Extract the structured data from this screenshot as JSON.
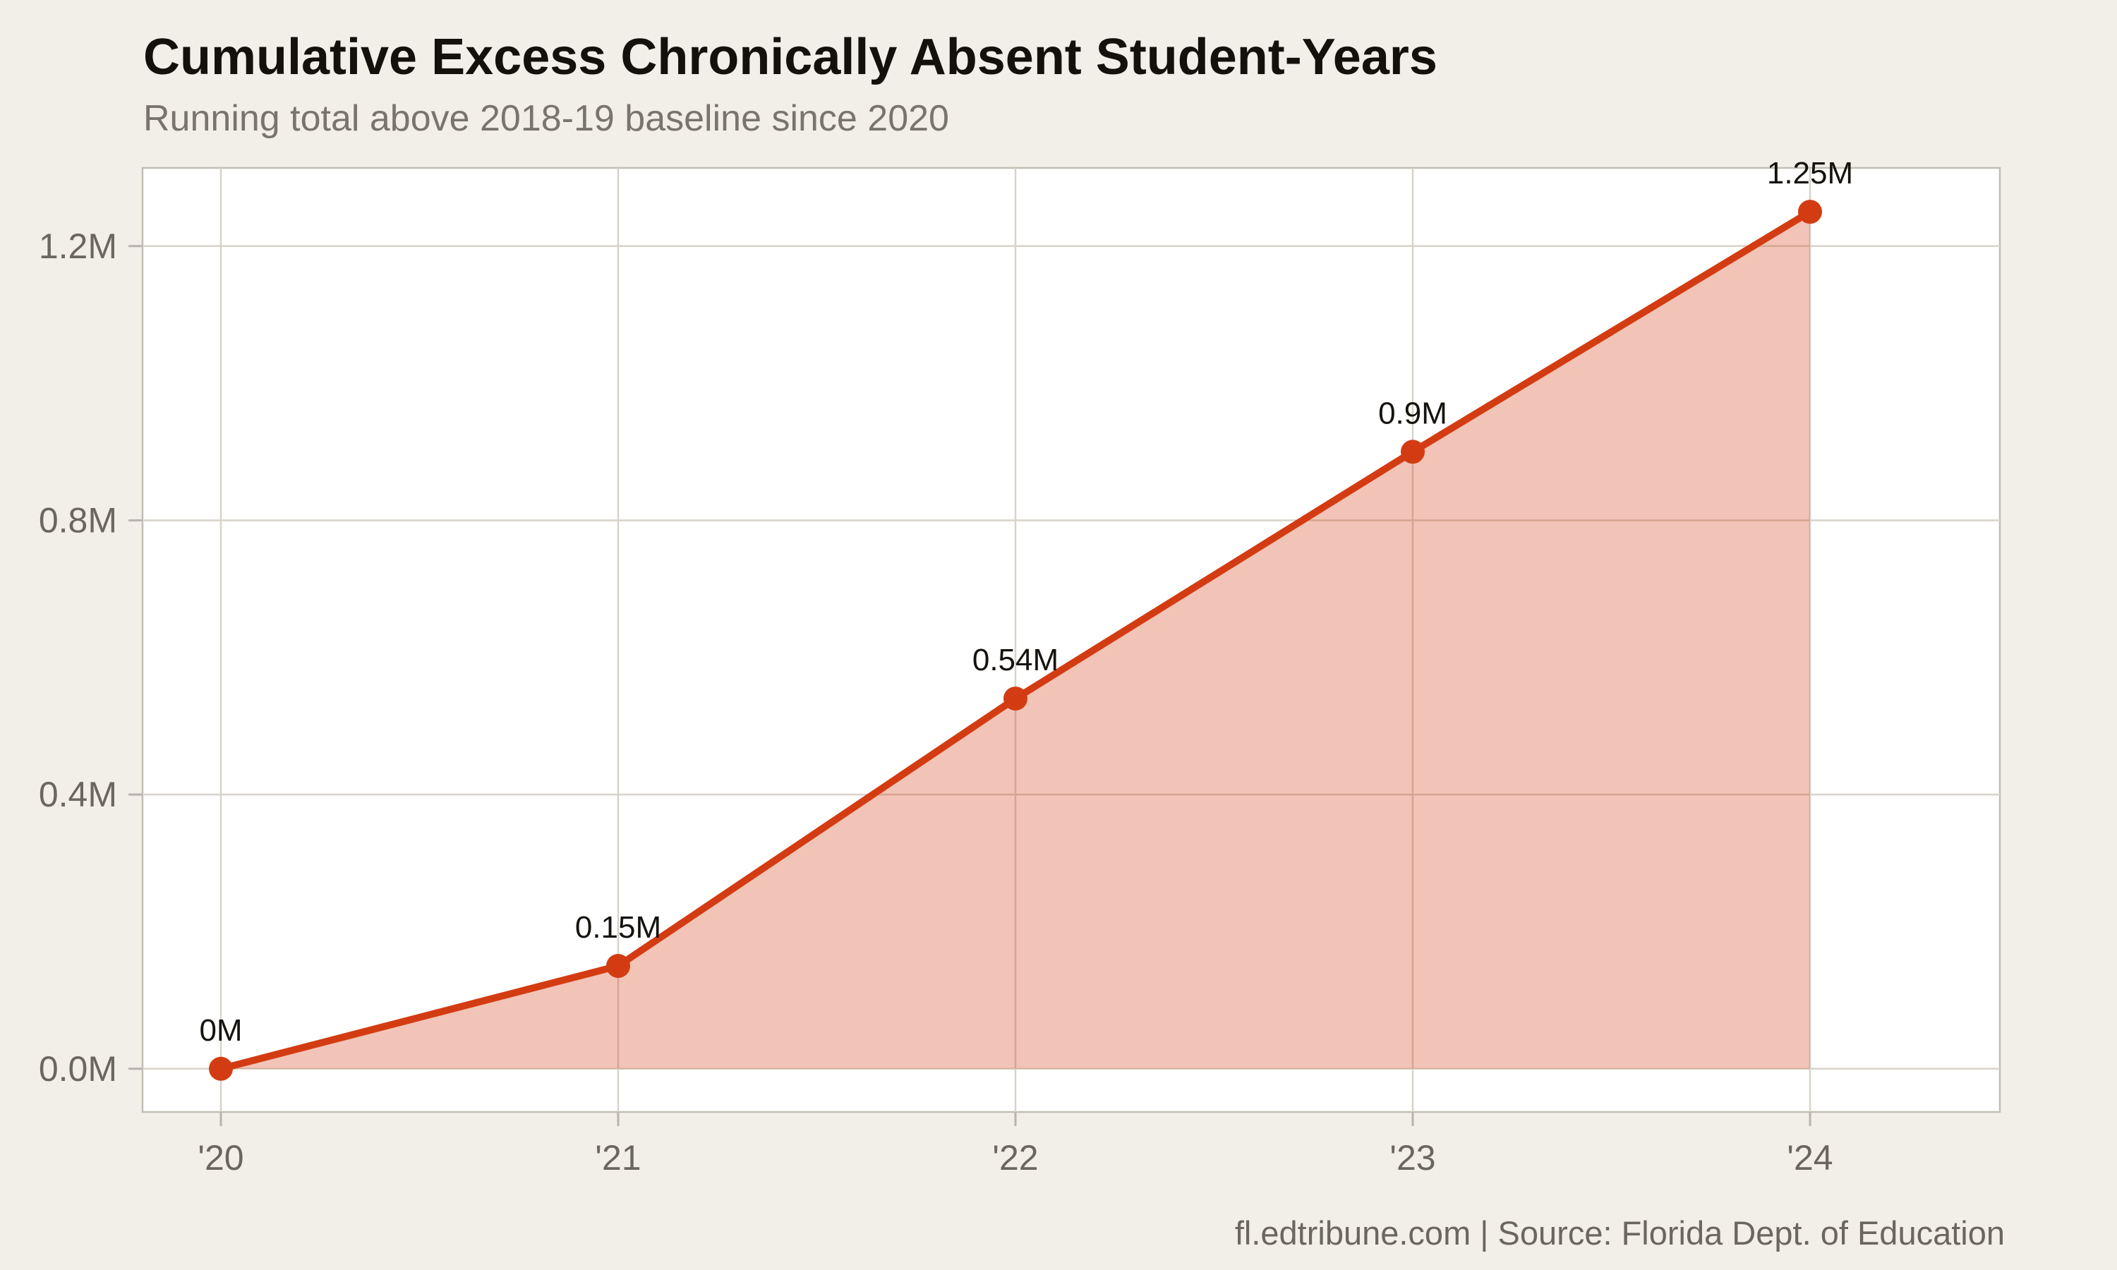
{
  "chart_data": {
    "type": "area",
    "title": "Cumulative Excess Chronically Absent Student-Years",
    "subtitle": "Running total above 2018-19 baseline since 2020",
    "categories": [
      "'20",
      "'21",
      "'22",
      "'23",
      "'24"
    ],
    "values": [
      0,
      0.15,
      0.54,
      0.9,
      1.25
    ],
    "point_labels": [
      "0M",
      "0.15M",
      "0.54M",
      "0.9M",
      "1.25M"
    ],
    "xlabel": "",
    "ylabel": "",
    "y_ticks": [
      0,
      0.4,
      0.8,
      1.2
    ],
    "y_tick_labels": [
      "0.0M",
      "0.4M",
      "0.8M",
      "1.2M"
    ],
    "ylim": [
      -0.063,
      1.314
    ],
    "grid": true,
    "legend": "none",
    "colors": {
      "line": "#d33c12",
      "fill_opacity": 0.3,
      "page_background": "#f2efe8",
      "plot_background": "#ffffff",
      "plot_border": "#c2beb4",
      "gridline": "#d7d3c9",
      "tick": "#b8b4aa",
      "axis_text": "#6b675f",
      "label_text": "#16130f",
      "title_text": "#14110d",
      "subtitle_text": "#79756d"
    }
  },
  "footer": {
    "attribution": "fl.edtribune.com | Source: Florida Dept. of Education"
  }
}
